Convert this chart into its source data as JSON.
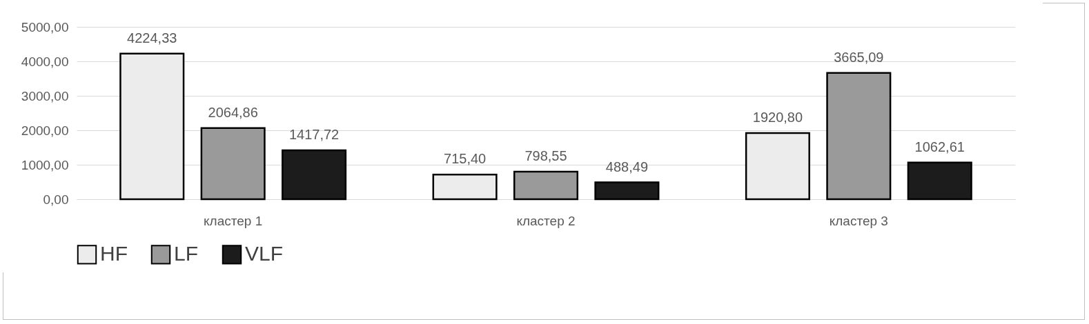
{
  "chart_data": {
    "type": "bar",
    "categories": [
      "кластер 1",
      "кластер 2",
      "кластер 3"
    ],
    "series": [
      {
        "name": "HF",
        "color": "#ececec",
        "values": [
          4224.33,
          715.4,
          1920.8
        ],
        "value_labels": [
          "4224,33",
          "715,40",
          "1920,80"
        ]
      },
      {
        "name": "LF",
        "color": "#9a9a9a",
        "values": [
          2064.86,
          798.55,
          3665.09
        ],
        "value_labels": [
          "2064,86",
          "798,55",
          "3665,09"
        ]
      },
      {
        "name": "VLF",
        "color": "#1c1c1c",
        "values": [
          1417.72,
          488.49,
          1062.61
        ],
        "value_labels": [
          "1417,72",
          "488,49",
          "1062,61"
        ]
      }
    ],
    "ylim": [
      0,
      5000
    ],
    "yticks": [
      {
        "value": 0,
        "label": "0,00"
      },
      {
        "value": 1000,
        "label": "1000,00"
      },
      {
        "value": 2000,
        "label": "2000,00"
      },
      {
        "value": 3000,
        "label": "3000,00"
      },
      {
        "value": 4000,
        "label": "4000,00"
      },
      {
        "value": 5000,
        "label": "5000,00"
      }
    ],
    "grid": "y",
    "legend": "bottom"
  }
}
